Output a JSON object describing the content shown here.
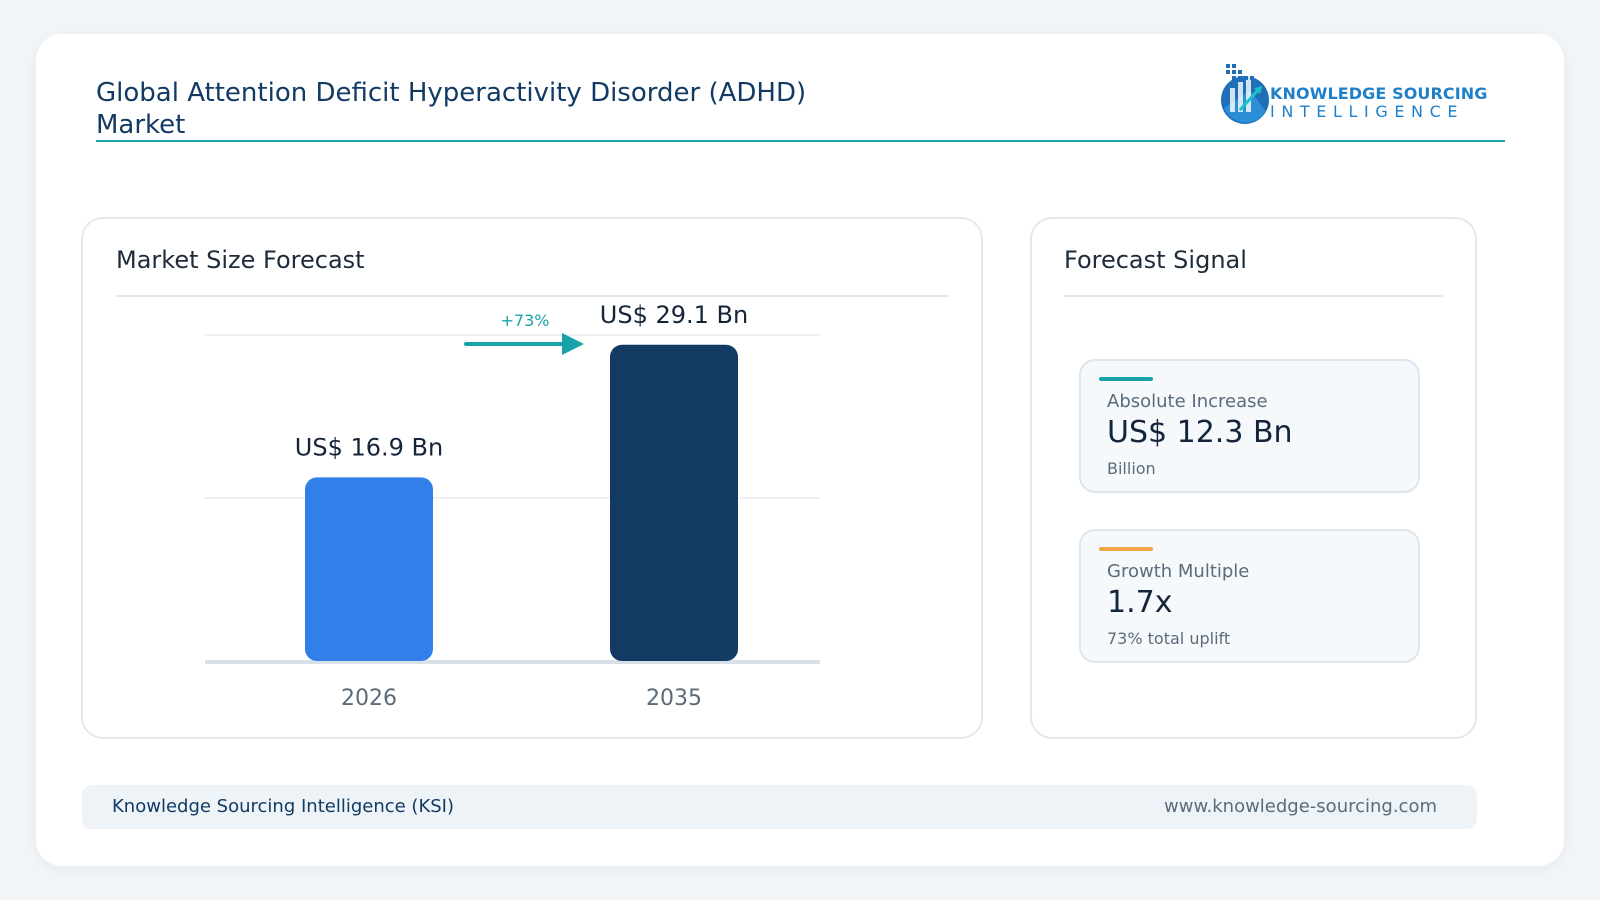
{
  "header": {
    "title": "Global Attention Deficit Hyperactivity Disorder (ADHD) Market",
    "logo_line1": "KNOWLEDGE SOURCING",
    "logo_line2": "INTELLIGENCE"
  },
  "forecast_panel": {
    "title": "Market Size Forecast",
    "growth_label": "+73%"
  },
  "signal_panel": {
    "title": "Forecast Signal",
    "cards": [
      {
        "label": "Absolute Increase",
        "value": "US$ 12.3 Bn",
        "sub": "Billion",
        "accent": "#19a3a8"
      },
      {
        "label": "Growth Multiple",
        "value": "1.7x",
        "sub": "73% total uplift",
        "accent": "#f2a54a"
      }
    ]
  },
  "footer": {
    "left": "Knowledge Sourcing Intelligence (KSI)",
    "right": "www.knowledge-sourcing.com"
  },
  "colors": {
    "accent": "#19a3a8",
    "bar_2026": "#3180ea",
    "bar_2035": "#123a63"
  },
  "chart_data": {
    "type": "bar",
    "categories": [
      "2026",
      "2035"
    ],
    "values": [
      16.9,
      29.1
    ],
    "data_labels": [
      "US$ 16.9 Bn",
      "US$ 29.1 Bn"
    ],
    "title": "Market Size Forecast",
    "xlabel": "",
    "ylabel": "",
    "ylim": [
      0,
      30
    ],
    "grid": true,
    "annotation": "+73%"
  }
}
